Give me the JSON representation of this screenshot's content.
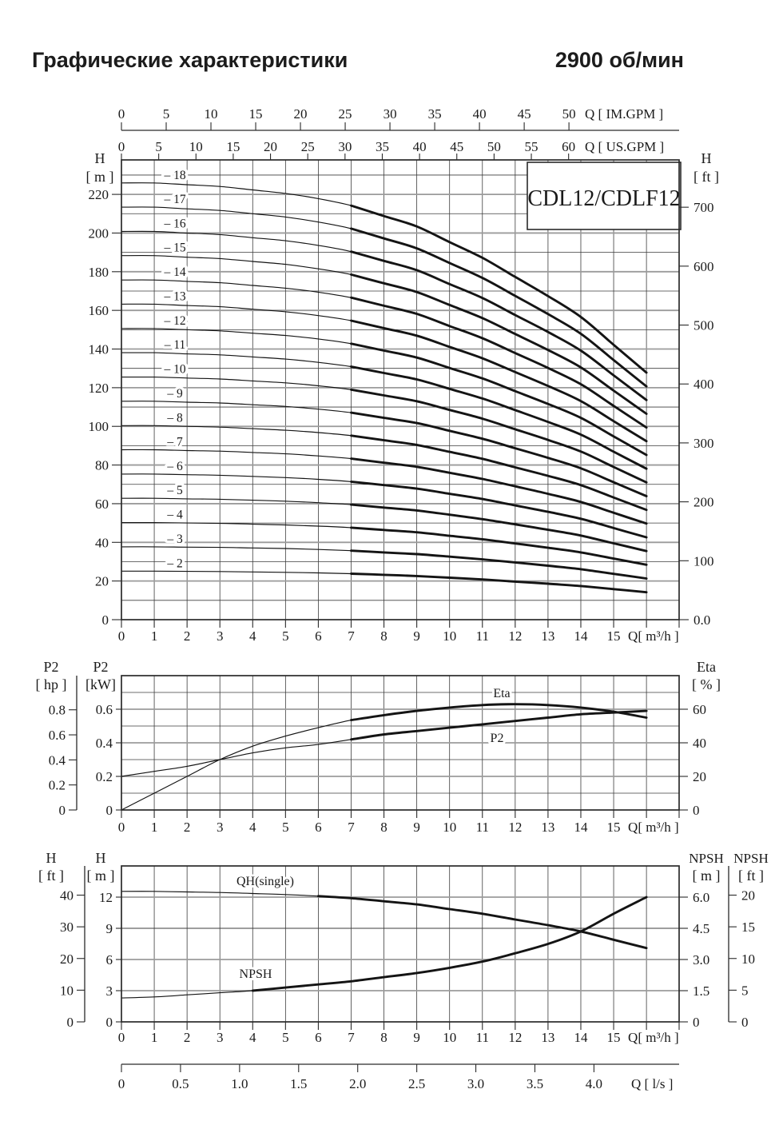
{
  "page": {
    "title": "Графические характеристики",
    "speed": "2900 об/мин",
    "model": "CDL12/CDLF12"
  },
  "chart_data": [
    {
      "id": "head-curves",
      "type": "line",
      "title": "CDL12/CDLF12",
      "x": {
        "label": "Q[ m³/h ]",
        "ticks": [
          0,
          1,
          2,
          3,
          4,
          5,
          6,
          7,
          8,
          9,
          10,
          11,
          12,
          13,
          14,
          15
        ],
        "range": [
          0,
          17
        ],
        "grid_step": 1
      },
      "x_top_axes": [
        {
          "name": "im-gpm",
          "label": "Q [ IM.GPM ]",
          "ticks": [
            0,
            5,
            10,
            15,
            20,
            25,
            30,
            35,
            40,
            45,
            50
          ],
          "m3h_per_unit": 0.27276
        },
        {
          "name": "us-gpm",
          "label": "Q [ US.GPM ]",
          "ticks": [
            0,
            5,
            10,
            15,
            20,
            25,
            30,
            35,
            40,
            45,
            50,
            55,
            60
          ],
          "m3h_per_unit": 0.22712
        }
      ],
      "y_left": {
        "name": "H",
        "unit": "[ m ]",
        "ticks": [
          0,
          20,
          40,
          60,
          80,
          100,
          120,
          140,
          160,
          180,
          200,
          220
        ],
        "grid_step": 10,
        "grid_max": 230,
        "range": [
          0,
          237.5
        ]
      },
      "y_right": {
        "name": "H",
        "unit": "[ ft ]",
        "tick_labels": [
          "0.0",
          "100",
          "200",
          "300",
          "400",
          "500",
          "600",
          "700"
        ],
        "tick_values": [
          0,
          100,
          200,
          300,
          400,
          500,
          600,
          700
        ],
        "m_per_ft": 0.3048
      },
      "q_points": [
        0,
        1,
        2,
        3,
        4,
        5,
        6,
        7,
        8,
        9,
        10,
        11,
        12,
        13,
        14,
        15,
        16
      ],
      "thick_from_q": 7,
      "series": [
        {
          "label": "– 2",
          "stages": 2,
          "head_m": [
            25.1,
            25.1,
            25.0,
            24.9,
            24.7,
            24.5,
            24.2,
            23.8,
            23.2,
            22.6,
            21.7,
            20.8,
            19.7,
            18.6,
            17.4,
            15.8,
            14.2
          ]
        },
        {
          "label": "– 3",
          "stages": 3,
          "head_m": [
            37.7,
            37.7,
            37.5,
            37.4,
            37.1,
            36.8,
            36.3,
            35.7,
            34.8,
            33.9,
            32.6,
            31.2,
            29.6,
            27.9,
            26.1,
            23.7,
            21.3
          ]
        },
        {
          "label": "– 4",
          "stages": 4,
          "head_m": [
            50.2,
            50.2,
            50.0,
            49.8,
            49.4,
            49.0,
            48.4,
            47.6,
            46.4,
            45.2,
            43.4,
            41.6,
            39.4,
            37.2,
            34.8,
            31.6,
            28.4
          ]
        },
        {
          "label": "– 5",
          "stages": 5,
          "head_m": [
            62.8,
            62.8,
            62.5,
            62.3,
            61.8,
            61.3,
            60.5,
            59.5,
            58.0,
            56.5,
            54.3,
            52.0,
            49.3,
            46.5,
            43.5,
            39.5,
            35.5
          ]
        },
        {
          "label": "– 6",
          "stages": 6,
          "head_m": [
            75.3,
            75.3,
            75.0,
            74.7,
            74.1,
            73.5,
            72.6,
            71.4,
            69.6,
            67.8,
            65.1,
            62.4,
            59.1,
            55.8,
            52.2,
            47.4,
            42.6
          ]
        },
        {
          "label": "– 7",
          "stages": 7,
          "head_m": [
            87.9,
            87.9,
            87.5,
            87.2,
            86.5,
            85.8,
            84.7,
            83.3,
            81.2,
            79.1,
            76.0,
            72.8,
            69.0,
            65.1,
            60.9,
            55.3,
            49.7
          ]
        },
        {
          "label": "– 8",
          "stages": 8,
          "head_m": [
            100.4,
            100.4,
            100.0,
            99.6,
            98.8,
            98.0,
            96.8,
            95.2,
            92.8,
            90.4,
            86.8,
            83.2,
            78.8,
            74.4,
            69.6,
            63.2,
            56.8
          ]
        },
        {
          "label": "– 9",
          "stages": 9,
          "head_m": [
            113.0,
            113.0,
            112.5,
            112.1,
            111.2,
            110.3,
            108.9,
            107.1,
            104.4,
            101.7,
            97.7,
            93.6,
            88.7,
            83.7,
            78.3,
            71.1,
            63.9
          ]
        },
        {
          "label": "– 10",
          "stages": 10,
          "head_m": [
            125.5,
            125.5,
            125.0,
            124.5,
            123.5,
            122.5,
            121.0,
            119.0,
            116.0,
            113.0,
            108.5,
            104.0,
            98.5,
            93.0,
            87.0,
            79.0,
            71.0
          ]
        },
        {
          "label": "– 11",
          "stages": 11,
          "head_m": [
            138.1,
            138.1,
            137.5,
            137.0,
            135.9,
            134.8,
            133.1,
            130.9,
            127.6,
            124.3,
            119.4,
            114.4,
            108.4,
            102.3,
            95.7,
            86.9,
            78.1
          ]
        },
        {
          "label": "– 12",
          "stages": 12,
          "head_m": [
            150.6,
            150.6,
            150.0,
            149.4,
            148.2,
            147.0,
            145.2,
            142.8,
            139.2,
            135.6,
            130.2,
            124.8,
            118.2,
            111.6,
            104.4,
            94.8,
            85.2
          ]
        },
        {
          "label": "– 13",
          "stages": 13,
          "head_m": [
            163.2,
            163.2,
            162.5,
            161.9,
            160.6,
            159.3,
            157.3,
            154.7,
            150.8,
            146.9,
            141.1,
            135.2,
            128.1,
            120.9,
            113.1,
            102.7,
            92.3
          ]
        },
        {
          "label": "– 14",
          "stages": 14,
          "head_m": [
            175.7,
            175.7,
            175.0,
            174.3,
            172.9,
            171.5,
            169.4,
            166.6,
            162.4,
            158.2,
            151.9,
            145.6,
            137.9,
            130.2,
            121.8,
            110.6,
            99.4
          ]
        },
        {
          "label": "– 15",
          "stages": 15,
          "head_m": [
            188.3,
            188.3,
            187.5,
            186.8,
            185.3,
            183.8,
            181.5,
            178.5,
            174.0,
            169.5,
            162.8,
            156.0,
            147.8,
            139.5,
            130.5,
            118.5,
            106.5
          ]
        },
        {
          "label": "– 16",
          "stages": 16,
          "head_m": [
            200.8,
            200.8,
            200.0,
            199.2,
            197.6,
            196.0,
            193.6,
            190.4,
            185.6,
            180.8,
            173.6,
            166.4,
            157.6,
            148.8,
            139.2,
            126.4,
            113.6
          ]
        },
        {
          "label": "– 17",
          "stages": 17,
          "head_m": [
            213.4,
            213.4,
            212.5,
            211.7,
            210.0,
            208.3,
            205.7,
            202.3,
            197.2,
            192.1,
            184.5,
            176.8,
            167.5,
            158.1,
            147.9,
            134.3,
            120.7
          ]
        },
        {
          "label": "– 18",
          "stages": 18,
          "head_m": [
            225.9,
            225.9,
            225.0,
            224.1,
            222.3,
            220.5,
            217.8,
            214.2,
            208.8,
            203.4,
            195.3,
            187.2,
            177.3,
            167.4,
            156.6,
            142.2,
            127.8
          ]
        }
      ]
    },
    {
      "id": "power-efficiency",
      "type": "line",
      "x": {
        "label": "Q[ m³/h ]",
        "ticks": [
          0,
          1,
          2,
          3,
          4,
          5,
          6,
          7,
          8,
          9,
          10,
          11,
          12,
          13,
          14,
          15
        ],
        "range": [
          0,
          17
        ],
        "grid_step": 1
      },
      "y_left_kw": {
        "name": "P2",
        "unit": "[kW]",
        "tick_labels": [
          "0",
          "0.2",
          "0.4",
          "0.6"
        ],
        "tick_values": [
          0,
          0.2,
          0.4,
          0.6
        ],
        "grid_step": 0.1,
        "range": [
          0,
          0.8
        ]
      },
      "y_left_hp": {
        "name": "P2",
        "unit": "[ hp ]",
        "tick_labels": [
          "0",
          "0.2",
          "0.4",
          "0.6",
          "0.8"
        ],
        "tick_values": [
          0,
          0.2,
          0.4,
          0.6,
          0.8
        ],
        "kw_per_hp": 0.7457
      },
      "y_right_eta": {
        "name": "Eta",
        "unit": "[ % ]",
        "tick_labels": [
          "0",
          "20",
          "40",
          "60"
        ],
        "tick_values": [
          0,
          20,
          40,
          60
        ],
        "range": [
          0,
          80
        ]
      },
      "q_points": [
        0,
        1,
        2,
        3,
        4,
        5,
        6,
        7,
        8,
        9,
        10,
        11,
        12,
        13,
        14,
        15,
        16
      ],
      "series": [
        {
          "name": "P2",
          "label": "P2",
          "unit": "kW",
          "thick_from_q": 7,
          "values": [
            0.2,
            0.23,
            0.26,
            0.3,
            0.34,
            0.37,
            0.39,
            0.42,
            0.45,
            0.47,
            0.49,
            0.51,
            0.53,
            0.55,
            0.57,
            0.58,
            0.59
          ]
        },
        {
          "name": "Eta",
          "label": "Eta",
          "unit": "%",
          "thick_from_q": 7,
          "values": [
            0,
            10,
            20,
            30,
            38,
            44,
            49,
            53.5,
            56.5,
            59,
            61,
            62.5,
            63,
            62.5,
            61,
            58.5,
            55
          ]
        }
      ]
    },
    {
      "id": "qh-npsh",
      "type": "line",
      "x": {
        "label": "Q[ m³/h ]",
        "ticks": [
          0,
          1,
          2,
          3,
          4,
          5,
          6,
          7,
          8,
          9,
          10,
          11,
          12,
          13,
          14,
          15
        ],
        "range": [
          0,
          17
        ],
        "grid_step": 1
      },
      "x_bottom_axis": {
        "name": "l-s",
        "label": "Q [ l/s ]",
        "tick_labels": [
          "0",
          "0.5",
          "1.0",
          "1.5",
          "2.0",
          "2.5",
          "3.0",
          "3.5",
          "4.0"
        ],
        "tick_values": [
          0,
          0.5,
          1.0,
          1.5,
          2.0,
          2.5,
          3.0,
          3.5,
          4.0
        ],
        "m3h_per_unit": 3.6
      },
      "y_left_m": {
        "name": "H",
        "unit": "[ m ]",
        "ticks": [
          0,
          3,
          6,
          9,
          12
        ],
        "range": [
          0,
          15
        ]
      },
      "y_left_ft": {
        "name": "H",
        "unit": "[ ft ]",
        "ticks": [
          0,
          10,
          20,
          30,
          40
        ],
        "m_per_ft": 0.3048
      },
      "y_right_npsh_m": {
        "name": "NPSH",
        "unit": "[ m ]",
        "tick_labels": [
          "0",
          "1.5",
          "3.0",
          "4.5",
          "6.0"
        ],
        "tick_values": [
          0,
          1.5,
          3.0,
          4.5,
          6.0
        ],
        "h_m_per_npsh_m": 2
      },
      "y_right_npsh_ft": {
        "name": "NPSH",
        "unit": "[ ft ]",
        "ticks": [
          0,
          5,
          10,
          15,
          20
        ]
      },
      "q_points": [
        0,
        1,
        2,
        3,
        4,
        5,
        6,
        7,
        8,
        9,
        10,
        11,
        12,
        13,
        14,
        15,
        16
      ],
      "series": [
        {
          "name": "QH(single)",
          "label": "QH(single)",
          "unit": "m",
          "thick_from_q": 6,
          "values": [
            12.55,
            12.55,
            12.5,
            12.45,
            12.35,
            12.25,
            12.1,
            11.9,
            11.6,
            11.3,
            10.85,
            10.4,
            9.85,
            9.3,
            8.7,
            7.9,
            7.1
          ]
        },
        {
          "name": "NPSH",
          "label": "NPSH",
          "unit": "m",
          "thick_from_q": 4,
          "values": [
            1.15,
            1.2,
            1.3,
            1.4,
            1.5,
            1.65,
            1.8,
            1.95,
            2.15,
            2.35,
            2.6,
            2.9,
            3.3,
            3.75,
            4.35,
            5.2,
            6.0
          ]
        }
      ]
    }
  ]
}
